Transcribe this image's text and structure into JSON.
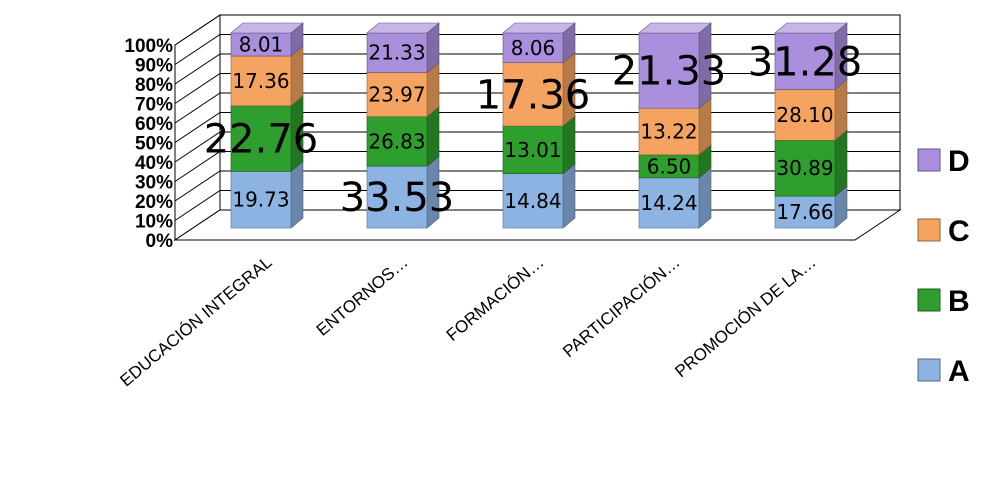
{
  "chart_data": {
    "type": "bar",
    "stacked": "percent",
    "categories": [
      "EDUCACIÓN INTEGRAL",
      "ENTORNOS…",
      "FORMACIÓN…",
      "PARTICIPACIÓN…",
      "PROMOCIÓN DE LA…"
    ],
    "series": [
      {
        "name": "A",
        "color": "#8db3e2",
        "values": [
          19.73,
          33.53,
          14.84,
          14.24,
          17.66
        ]
      },
      {
        "name": "B",
        "color": "#2e9e2e",
        "values": [
          22.76,
          26.83,
          13.01,
          6.5,
          30.89
        ]
      },
      {
        "name": "C",
        "color": "#f4a460",
        "values": [
          17.36,
          23.97,
          17.36,
          13.22,
          28.1
        ]
      },
      {
        "name": "D",
        "color": "#a98fdc",
        "values": [
          8.01,
          21.33,
          8.06,
          21.33,
          31.28
        ]
      }
    ],
    "data_labels": [
      [
        "19.73",
        "22.76",
        "17.36",
        "8.01"
      ],
      [
        "33.53",
        "26.83",
        "23.97",
        "21.33"
      ],
      [
        "14.84",
        "13.01",
        "17.36",
        "8.06"
      ],
      [
        "14.24",
        "6.50",
        "13.22",
        "21.33"
      ],
      [
        "17.66",
        "30.89",
        "28.10",
        "31.28"
      ]
    ],
    "large_labels": [
      [
        false,
        true,
        false,
        false
      ],
      [
        true,
        false,
        false,
        false
      ],
      [
        false,
        false,
        true,
        false
      ],
      [
        false,
        false,
        false,
        true
      ],
      [
        false,
        false,
        false,
        true
      ]
    ],
    "yticks": [
      "0%",
      "10%",
      "20%",
      "30%",
      "40%",
      "50%",
      "60%",
      "70%",
      "80%",
      "90%",
      "100%"
    ],
    "ylim": [
      0,
      100
    ],
    "grid": true,
    "legend": {
      "position": "right",
      "order": [
        "D",
        "C",
        "B",
        "A"
      ]
    }
  }
}
